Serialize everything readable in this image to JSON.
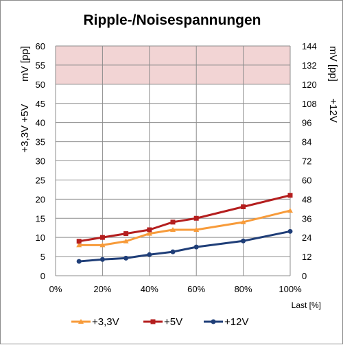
{
  "chart_data": {
    "type": "line",
    "title": "Ripple-/Noisespannungen",
    "xlabel": "Last [%]",
    "ylabel_left_top": "mV [pp]",
    "ylabel_left_bottom": "+3,3V +5V",
    "ylabel_right_top": "mV [pp]",
    "ylabel_right_bottom": "+12V",
    "x_ticks": [
      "0%",
      "20%",
      "40%",
      "60%",
      "80%",
      "100%"
    ],
    "xlim": [
      0,
      100
    ],
    "ylim_left": [
      0,
      60
    ],
    "ylim_right": [
      0,
      144
    ],
    "y_ticks_left": [
      "0",
      "5",
      "10",
      "15",
      "20",
      "25",
      "30",
      "35",
      "40",
      "45",
      "50",
      "55",
      "60"
    ],
    "y_ticks_right": [
      "0",
      "12",
      "24",
      "36",
      "48",
      "60",
      "72",
      "84",
      "96",
      "108",
      "120",
      "132",
      "144"
    ],
    "limit_band_left": [
      50,
      60
    ],
    "limit_band_color": "#f2d4d4",
    "grid": true,
    "legend_position": "bottom",
    "series": [
      {
        "name": "+3,3V",
        "axis": "left",
        "color": "#f79b3a",
        "marker": "triangle",
        "x": [
          10,
          20,
          30,
          40,
          50,
          60,
          80,
          100
        ],
        "values": [
          8,
          8,
          9,
          11,
          12,
          12,
          14,
          17
        ]
      },
      {
        "name": "+5V",
        "axis": "left",
        "color": "#b41e1e",
        "marker": "square",
        "x": [
          10,
          20,
          30,
          40,
          50,
          60,
          80,
          100
        ],
        "values": [
          9,
          10,
          11,
          12,
          14,
          15,
          18,
          21
        ]
      },
      {
        "name": "+12V",
        "axis": "right",
        "color": "#1f3e78",
        "marker": "circle",
        "x": [
          10,
          20,
          30,
          40,
          50,
          60,
          80,
          100
        ],
        "values": [
          9,
          10.2,
          11,
          13.2,
          15,
          18,
          21.8,
          27.8
        ]
      }
    ]
  }
}
